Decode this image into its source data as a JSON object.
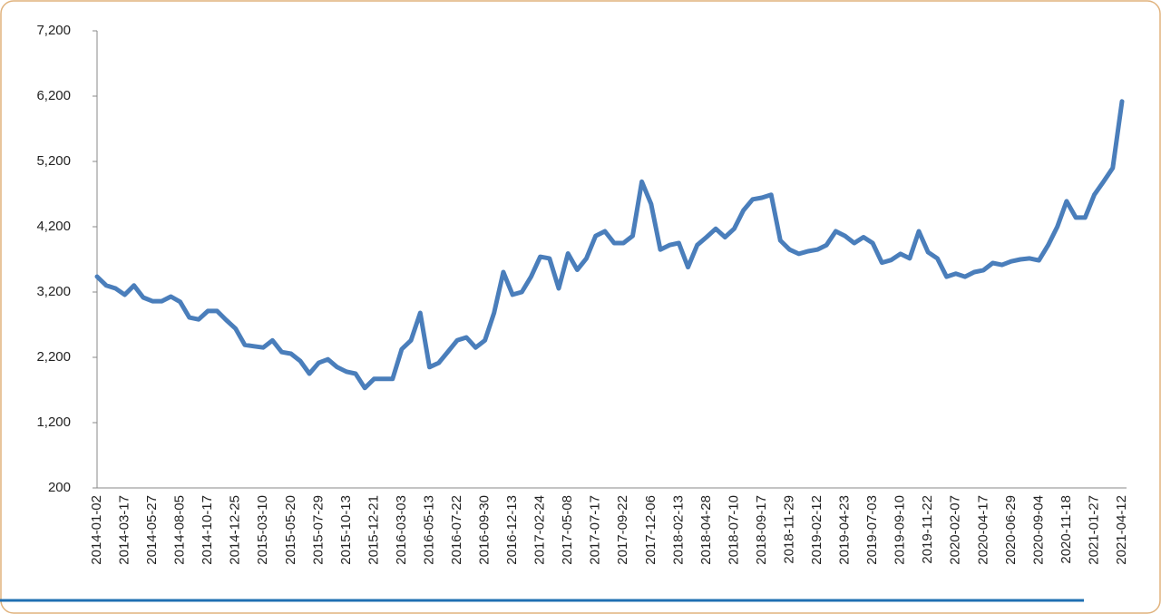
{
  "chart_data": {
    "type": "line",
    "categories": [
      "2014-01-02",
      null,
      null,
      "2014-03-17",
      null,
      null,
      "2014-05-27",
      null,
      null,
      "2014-08-05",
      null,
      null,
      "2014-10-17",
      null,
      null,
      "2014-12-25",
      null,
      null,
      "2015-03-10",
      null,
      null,
      "2015-05-20",
      null,
      null,
      "2015-07-29",
      null,
      null,
      "2015-10-13",
      null,
      null,
      "2015-12-21",
      null,
      null,
      "2016-03-03",
      null,
      null,
      "2016-05-13",
      null,
      null,
      "2016-07-22",
      null,
      null,
      "2016-09-30",
      null,
      null,
      "2016-12-13",
      null,
      null,
      "2017-02-24",
      null,
      null,
      "2017-05-08",
      null,
      null,
      "2017-07-17",
      null,
      null,
      "2017-09-22",
      null,
      null,
      "2017-12-06",
      null,
      null,
      "2018-02-13",
      null,
      null,
      "2018-04-28",
      null,
      null,
      "2018-07-10",
      null,
      null,
      "2018-09-17",
      null,
      null,
      "2018-11-29",
      null,
      null,
      "2019-02-12",
      null,
      null,
      "2019-04-23",
      null,
      null,
      "2019-07-03",
      null,
      null,
      "2019-09-10",
      null,
      null,
      "2019-11-22",
      null,
      null,
      "2020-02-07",
      null,
      null,
      "2020-04-17",
      null,
      null,
      "2020-06-29",
      null,
      null,
      "2020-09-04",
      null,
      null,
      "2020-11-18",
      null,
      null,
      "2021-01-27",
      null,
      null,
      "2021-04-12"
    ],
    "series": [
      {
        "name": null,
        "color": "#4a7ebb",
        "values": [
          3436,
          3300,
          3255,
          3158,
          3300,
          3117,
          3060,
          3060,
          3130,
          3050,
          2810,
          2780,
          2910,
          2910,
          2770,
          2640,
          2390,
          2370,
          2350,
          2460,
          2280,
          2255,
          2145,
          1950,
          2115,
          2170,
          2050,
          1980,
          1950,
          1730,
          1870,
          1870,
          1870,
          2325,
          2460,
          2880,
          2050,
          2115,
          2285,
          2460,
          2505,
          2350,
          2460,
          2880,
          3505,
          3160,
          3200,
          3435,
          3740,
          3715,
          3255,
          3790,
          3540,
          3715,
          4060,
          4130,
          3950,
          3950,
          4060,
          4890,
          4550,
          3850,
          3920,
          3950,
          3580,
          3920,
          4040,
          4170,
          4040,
          4170,
          4450,
          4620,
          4645,
          4690,
          3990,
          3850,
          3785,
          3825,
          3850,
          3920,
          4130,
          4060,
          3950,
          4040,
          3950,
          3650,
          3690,
          3785,
          3715,
          4130,
          3810,
          3715,
          3435,
          3480,
          3435,
          3505,
          3535,
          3645,
          3615,
          3670,
          3700,
          3715,
          3685,
          3920,
          4200,
          4590,
          4340,
          4340,
          4690,
          4890,
          5100,
          6120
        ]
      }
    ],
    "ylim": [
      200,
      7200
    ],
    "yticks": [
      200,
      {
        "value": 1200,
        "label": "1,200"
      },
      {
        "value": 2200,
        "label": "2,200"
      },
      {
        "value": 3200,
        "label": "3,200"
      },
      {
        "value": 4200,
        "label": "4,200"
      },
      {
        "value": 5200,
        "label": "5,200"
      },
      {
        "value": 6200,
        "label": "6,200"
      },
      {
        "value": 7200,
        "label": "7,200"
      }
    ],
    "grid": false
  }
}
